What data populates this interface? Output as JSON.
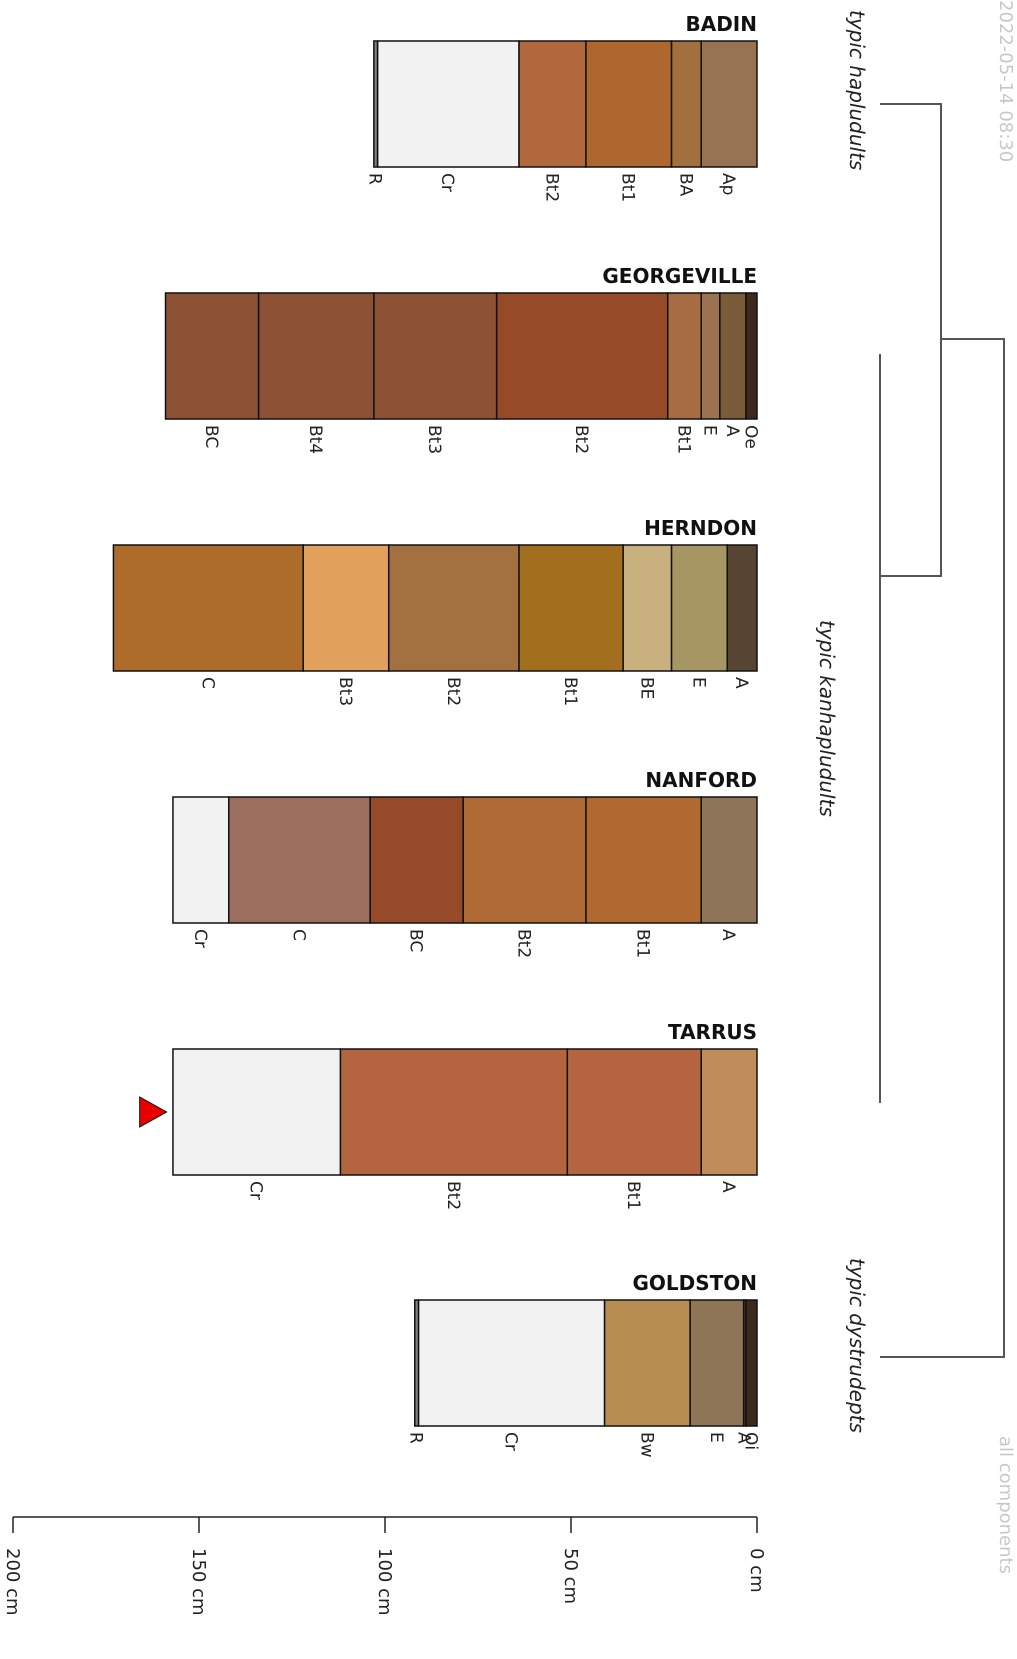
{
  "scale": {
    "depth_ticks_cm": [
      0,
      50,
      100,
      150,
      200
    ],
    "unit": "cm"
  },
  "watermarks": {
    "top": "2022-05-14 08:30",
    "bottom": "all components"
  },
  "profiles": [
    {
      "name": "BADIN",
      "horizons": [
        {
          "name": "Ap",
          "top": 0,
          "bottom": 15,
          "color": "#987353"
        },
        {
          "name": "BA",
          "top": 15,
          "bottom": 23,
          "color": "#a26f3f"
        },
        {
          "name": "Bt1",
          "top": 23,
          "bottom": 46,
          "color": "#ad672f"
        },
        {
          "name": "Bt2",
          "top": 46,
          "bottom": 64,
          "color": "#b2683d"
        },
        {
          "name": "Cr",
          "top": 64,
          "bottom": 102,
          "color": "#f2f2f2"
        },
        {
          "name": "R",
          "top": 102,
          "bottom": 103,
          "color": "#808080"
        }
      ]
    },
    {
      "name": "GEORGEVILLE",
      "horizons": [
        {
          "name": "Oe",
          "top": 0,
          "bottom": 3,
          "color": "#3d2a1c"
        },
        {
          "name": "A",
          "top": 3,
          "bottom": 10,
          "color": "#7b5c38"
        },
        {
          "name": "E",
          "top": 10,
          "bottom": 15,
          "color": "#9b7350"
        },
        {
          "name": "Bt1",
          "top": 15,
          "bottom": 24,
          "color": "#a86c45"
        },
        {
          "name": "Bt2",
          "top": 24,
          "bottom": 70,
          "color": "#964a28"
        },
        {
          "name": "Bt3",
          "top": 70,
          "bottom": 103,
          "color": "#8d5135"
        },
        {
          "name": "Bt4",
          "top": 103,
          "bottom": 134,
          "color": "#8d5135"
        },
        {
          "name": "BC",
          "top": 134,
          "bottom": 159,
          "color": "#8d5135"
        }
      ]
    },
    {
      "name": "HERNDON",
      "horizons": [
        {
          "name": "A",
          "top": 0,
          "bottom": 8,
          "color": "#554532"
        },
        {
          "name": "E",
          "top": 8,
          "bottom": 23,
          "color": "#a69663"
        },
        {
          "name": "BE",
          "top": 23,
          "bottom": 36,
          "color": "#c9b17f"
        },
        {
          "name": "Bt1",
          "top": 36,
          "bottom": 64,
          "color": "#a36f1f"
        },
        {
          "name": "Bt2",
          "top": 64,
          "bottom": 99,
          "color": "#a37140"
        },
        {
          "name": "Bt3",
          "top": 99,
          "bottom": 122,
          "color": "#e2a05d"
        },
        {
          "name": "C",
          "top": 122,
          "bottom": 173,
          "color": "#ad6c2a"
        }
      ]
    },
    {
      "name": "NANFORD",
      "horizons": [
        {
          "name": "A",
          "top": 0,
          "bottom": 15,
          "color": "#8e7559"
        },
        {
          "name": "Bt1",
          "top": 15,
          "bottom": 46,
          "color": "#b06a31"
        },
        {
          "name": "Bt2",
          "top": 46,
          "bottom": 79,
          "color": "#b06a36"
        },
        {
          "name": "BC",
          "top": 79,
          "bottom": 104,
          "color": "#974a29"
        },
        {
          "name": "C",
          "top": 104,
          "bottom": 142,
          "color": "#9c6e5d"
        },
        {
          "name": "Cr",
          "top": 142,
          "bottom": 157,
          "color": "#f2f2f2"
        }
      ]
    },
    {
      "name": "TARRUS",
      "horizons": [
        {
          "name": "A",
          "top": 0,
          "bottom": 15,
          "color": "#c18c5b"
        },
        {
          "name": "Bt1",
          "top": 15,
          "bottom": 51,
          "color": "#b4653f"
        },
        {
          "name": "Bt2",
          "top": 51,
          "bottom": 112,
          "color": "#b4653f"
        },
        {
          "name": "Cr",
          "top": 112,
          "bottom": 157,
          "color": "#f2f2f2"
        }
      ]
    },
    {
      "name": "GOLDSTON",
      "horizons": [
        {
          "name": "Oi",
          "top": 0,
          "bottom": 3,
          "color": "#3a2a1d"
        },
        {
          "name": "A",
          "top": 3,
          "bottom": 3.6,
          "color": "#5a4030"
        },
        {
          "name": "E",
          "top": 3.6,
          "bottom": 18,
          "color": "#8e7558"
        },
        {
          "name": "Bw",
          "top": 18,
          "bottom": 41,
          "color": "#b88d52"
        },
        {
          "name": "Cr",
          "top": 41,
          "bottom": 91,
          "color": "#f2f2f2"
        },
        {
          "name": "R",
          "top": 91,
          "bottom": 92,
          "color": "#808080"
        }
      ]
    }
  ],
  "groups": [
    {
      "label": "typic hapludults"
    },
    {
      "label": "typic kanhapludults"
    },
    {
      "label": "typic dystrudepts"
    }
  ],
  "marker": {
    "profile": "TARRUS",
    "depth_cm": 163,
    "color": "#e60000"
  }
}
